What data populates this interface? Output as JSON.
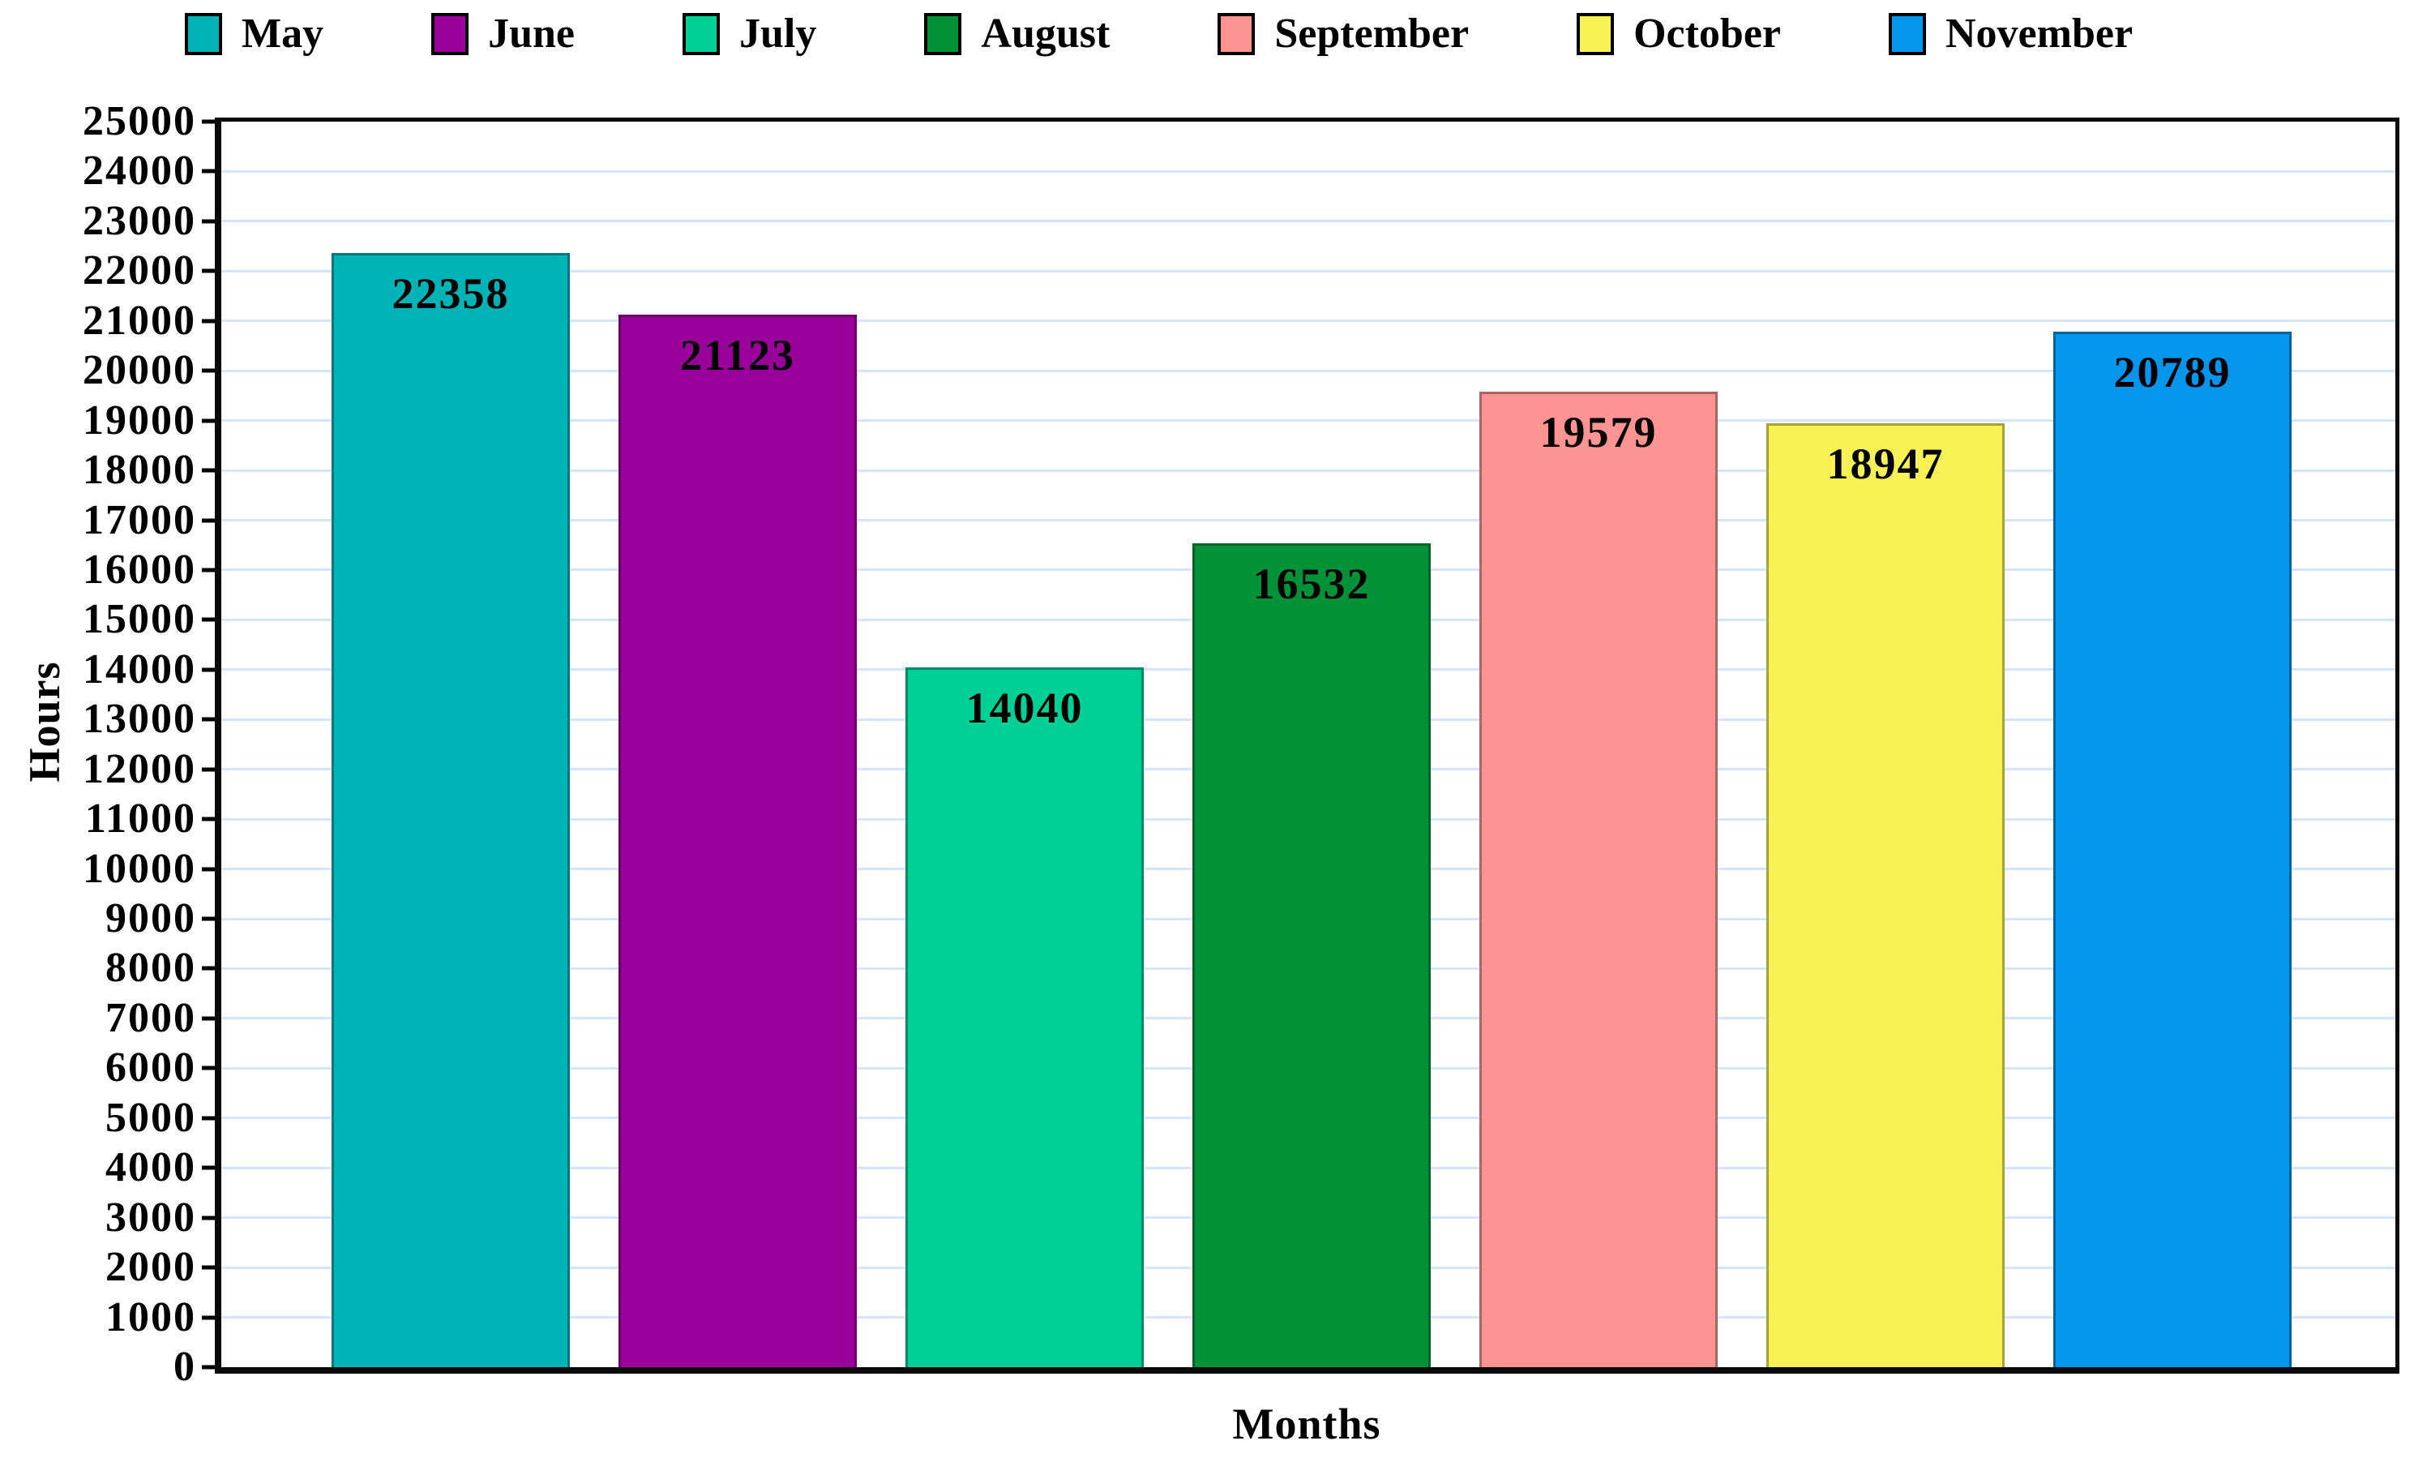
{
  "chart_data": {
    "type": "bar",
    "categories": [
      "May",
      "June",
      "July",
      "August",
      "September",
      "October",
      "November"
    ],
    "values": [
      22358,
      21123,
      14040,
      16532,
      19579,
      18947,
      20789
    ],
    "colors": [
      "#00b3b7",
      "#9a019a",
      "#00cf96",
      "#049239",
      "#fd9494",
      "#f8f155",
      "#0495ec"
    ],
    "title": "",
    "xlabel": "Months",
    "ylabel": "Hours",
    "ylim": [
      0,
      25000
    ],
    "ytick_step": 1000,
    "yticks": [
      0,
      1000,
      2000,
      3000,
      4000,
      5000,
      6000,
      7000,
      8000,
      9000,
      10000,
      11000,
      12000,
      13000,
      14000,
      15000,
      16000,
      17000,
      18000,
      19000,
      20000,
      21000,
      22000,
      23000,
      24000,
      25000
    ],
    "data_labels": [
      "22358",
      "21123",
      "14040",
      "16532",
      "19579",
      "18947",
      "20789"
    ],
    "grid": "horizontal",
    "grid_color": "#d7e6f7",
    "legend_position": "top",
    "axis_frame_color": "#0a0a0a",
    "label_color": "#000000"
  }
}
